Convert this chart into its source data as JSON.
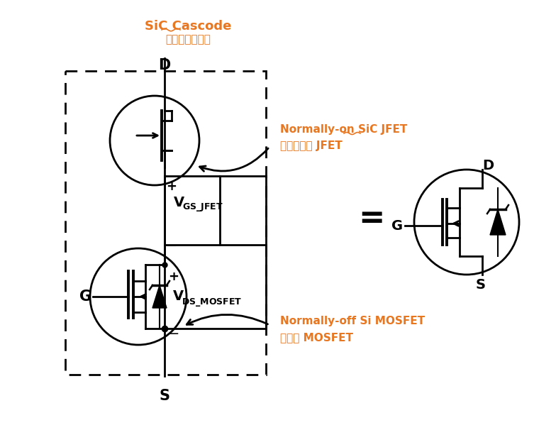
{
  "title_line1": "SiC Cascode",
  "title_line2": "碳化确共源共栀",
  "title_color": "#E87722",
  "bg_color": "#FFFFFF",
  "label_d_top": "D",
  "label_s_bot": "S",
  "label_g_left": "G",
  "label_jfet": "Normally-on SiC JFET",
  "label_jfet_cn": "常开碳化确 JFET",
  "label_mosfet": "Normally-off Si MOSFET",
  "label_mosfet_cn": "常关确 MOSFET",
  "orange": "#E87722",
  "black": "#000000",
  "right_d": "D",
  "right_g": "G",
  "right_s": "S"
}
